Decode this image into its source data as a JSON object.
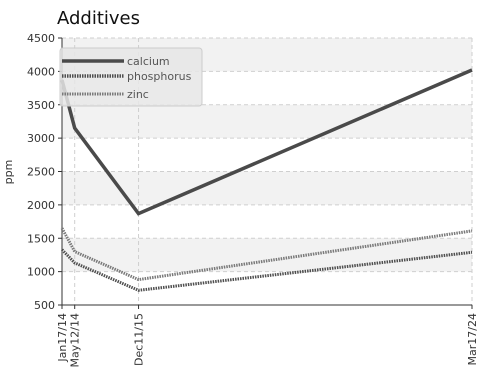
{
  "chart_data": {
    "type": "line",
    "title": "Additives",
    "xlabel": "",
    "ylabel": "ppm",
    "categories": [
      "Jan17/14",
      "May12/14",
      "Dec11/15",
      "Mar17/24"
    ],
    "x_dates": [
      "2014-01-17",
      "2014-05-12",
      "2015-12-11",
      "2024-03-17"
    ],
    "ylim": [
      500,
      4500
    ],
    "yticks": [
      500,
      1000,
      1500,
      2000,
      2500,
      3000,
      3500,
      4000,
      4500
    ],
    "grid": true,
    "legend_position": "top-left",
    "series": [
      {
        "name": "calcium",
        "values": [
          3870,
          3150,
          1870,
          4020
        ],
        "color": "#4a4a4a",
        "style": "solid"
      },
      {
        "name": "phosphorus",
        "values": [
          1330,
          1130,
          720,
          1290
        ],
        "color": "#4f4f4f",
        "style": "dotted"
      },
      {
        "name": "zinc",
        "values": [
          1650,
          1300,
          880,
          1610
        ],
        "color": "#7a7a7a",
        "style": "dotted"
      }
    ]
  }
}
